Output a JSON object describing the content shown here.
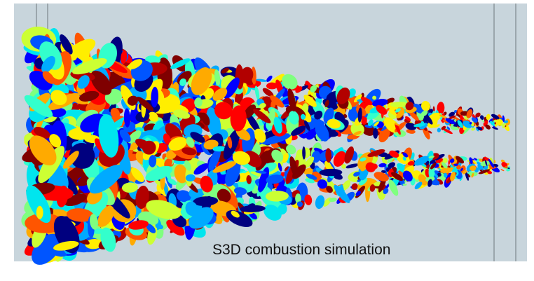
{
  "caption": "S3D combustion simulation"
}
